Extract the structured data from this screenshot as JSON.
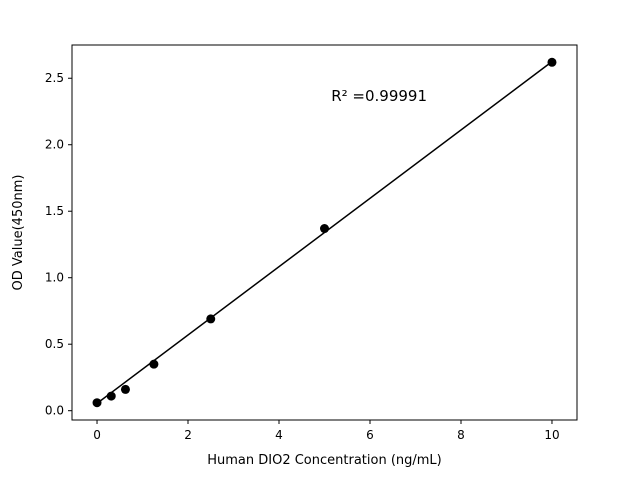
{
  "chart_data": {
    "type": "scatter",
    "title": "",
    "xlabel": "Human DIO2 Concentration (ng/mL)",
    "ylabel": "OD Value(450nm)",
    "series": [
      {
        "name": "standards",
        "x": [
          0,
          0.3125,
          0.625,
          1.25,
          2.5,
          5,
          10
        ],
        "y": [
          0.06,
          0.11,
          0.16,
          0.35,
          0.69,
          1.37,
          2.62
        ]
      }
    ],
    "fit_line": {
      "x": [
        0,
        10
      ],
      "y": [
        0.055,
        2.625
      ]
    },
    "annotation": {
      "text": "R² =0.99991",
      "x": 6.2,
      "y": 2.33
    },
    "xlim": [
      -0.55,
      10.55
    ],
    "ylim": [
      -0.07,
      2.75
    ],
    "xticks": [
      0,
      2,
      4,
      6,
      8,
      10
    ],
    "xtick_labels": [
      "0",
      "2",
      "4",
      "6",
      "8",
      "10"
    ],
    "yticks": [
      0.0,
      0.5,
      1.0,
      1.5,
      2.0,
      2.5
    ],
    "ytick_labels": [
      "0.0",
      "0.5",
      "1.0",
      "1.5",
      "2.0",
      "2.5"
    ],
    "grid": false,
    "legend": "none",
    "marker_color": "#000000",
    "line_color": "#000000",
    "background_color": "#ffffff"
  }
}
